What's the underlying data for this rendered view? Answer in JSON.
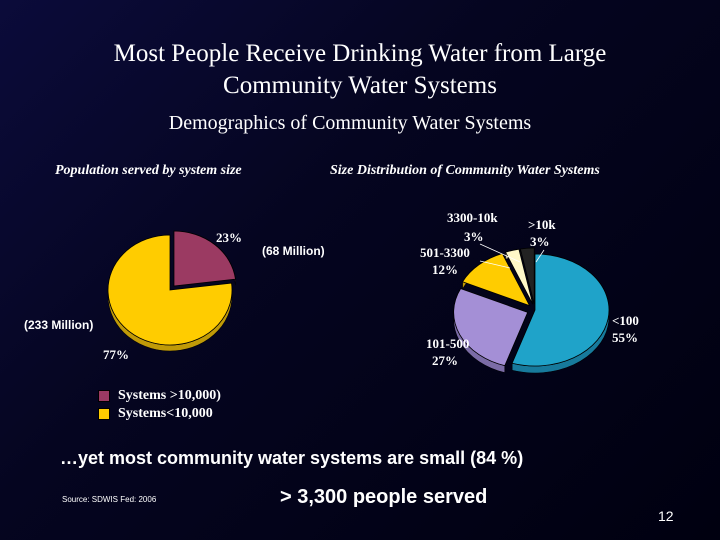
{
  "slide": {
    "title_line1": "Most People Receive Drinking Water from Large",
    "title_line2": "Community Water Systems",
    "subtitle": "Demographics of Community Water Systems",
    "footnote": "…yet most community water systems are small (84 %)",
    "served": "> 3,300  people served",
    "source": "Source: SDWIS Fed: 2006",
    "page_number": "12"
  },
  "colors": {
    "background": "#050520",
    "slice_large": "#9b3a62",
    "slice_small": "#ffcc00",
    "slice_lt100": "#1fa3c9",
    "slice_101_500": "#a48fd6",
    "slice_501_3300": "#ffcc00",
    "slice_3300_10k": "#fff8c8",
    "slice_gt10k": "#222222"
  },
  "chart_data": [
    {
      "type": "pie",
      "title": "Population served by system size",
      "slices": [
        {
          "label": "Systems >10,000)",
          "pct_label": "23%",
          "value": 23,
          "annotation": "(68 Million)",
          "color_key": "slice_large"
        },
        {
          "label": "Systems<10,000",
          "pct_label": "77%",
          "value": 77,
          "annotation": "(233 Million)",
          "color_key": "slice_small"
        }
      ],
      "legend": [
        "Systems >10,000)",
        "Systems<10,000"
      ],
      "legend_position": "bottom"
    },
    {
      "type": "pie",
      "title": "Size Distribution of Community Water Systems",
      "slices": [
        {
          "label": "<100",
          "pct_label": "55%",
          "value": 55,
          "color_key": "slice_lt100"
        },
        {
          "label": "101-500",
          "pct_label": "27%",
          "value": 27,
          "color_key": "slice_101_500"
        },
        {
          "label": "501-3300",
          "pct_label": "12%",
          "value": 12,
          "color_key": "slice_501_3300"
        },
        {
          "label": "3300-10k",
          "pct_label": "3%",
          "value": 3,
          "color_key": "slice_3300_10k"
        },
        {
          "label": ">10k",
          "pct_label": "3%",
          "value": 3,
          "color_key": "slice_gt10k"
        }
      ]
    }
  ]
}
